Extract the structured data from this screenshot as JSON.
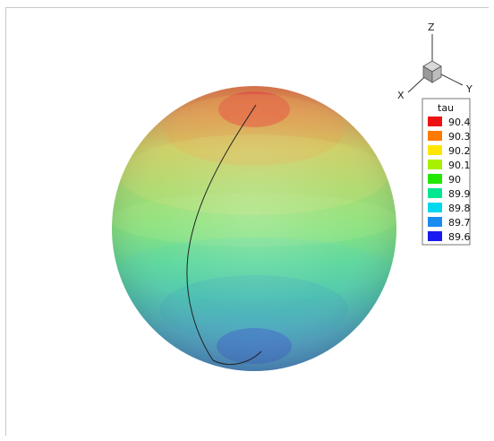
{
  "legend": {
    "title": "tau",
    "levels": [
      {
        "label": "90.4",
        "color": "#ee1111"
      },
      {
        "label": "90.3",
        "color": "#ff7a00"
      },
      {
        "label": "90.2",
        "color": "#ffe600"
      },
      {
        "label": "90.1",
        "color": "#a8f000"
      },
      {
        "label": "90",
        "color": "#22e800"
      },
      {
        "label": "89.9",
        "color": "#00e890"
      },
      {
        "label": "89.8",
        "color": "#00d8f0"
      },
      {
        "label": "89.7",
        "color": "#1a8cf0"
      },
      {
        "label": "89.6",
        "color": "#1a1af0"
      }
    ]
  },
  "axes": {
    "x": "X",
    "y": "Y",
    "z": "Z"
  }
}
